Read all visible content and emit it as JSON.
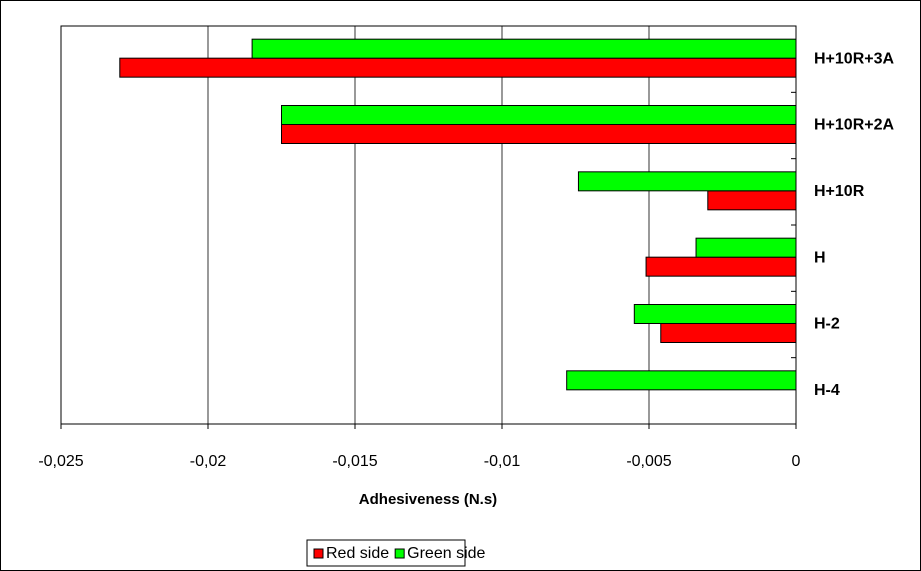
{
  "chart_data": {
    "type": "hbar",
    "x_label": "Adhesiveness (N.s)",
    "categories": [
      "H+10R+3A",
      "H+10R+2A",
      "H+10R",
      "H",
      "H-2",
      "H-4"
    ],
    "series": [
      {
        "name": "Red side",
        "color": "#ff0000",
        "values": [
          -0.023,
          -0.0175,
          -0.003,
          -0.0051,
          -0.0046,
          null
        ]
      },
      {
        "name": "Green side",
        "color": "#00ff00",
        "values": [
          -0.0185,
          -0.0175,
          -0.0074,
          -0.0034,
          -0.0055,
          -0.0078
        ]
      }
    ],
    "xlim": [
      -0.025,
      0
    ],
    "xticks": [
      {
        "value": -0.025,
        "label": "-0,025"
      },
      {
        "value": -0.02,
        "label": "-0,02"
      },
      {
        "value": -0.015,
        "label": "-0,015"
      },
      {
        "value": -0.01,
        "label": "-0,01"
      },
      {
        "value": -0.005,
        "label": "-0,005"
      },
      0
    ],
    "grid": true,
    "legend": "bottom"
  }
}
